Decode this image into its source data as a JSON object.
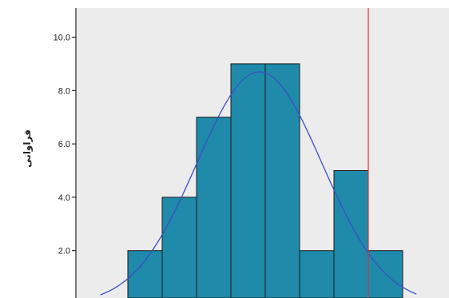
{
  "chart_data": {
    "type": "histogram",
    "title": "",
    "xlabel": "",
    "ylabel": "فراوانی",
    "ylim": [
      0,
      11
    ],
    "yticks": [
      2.0,
      4.0,
      6.0,
      8.0,
      10.0
    ],
    "ytick_labels": [
      "2.0",
      "4.0",
      "6.0",
      "8.0",
      "10.0"
    ],
    "bins": [
      1,
      2,
      3,
      4,
      5,
      6,
      7,
      8,
      9
    ],
    "values": [
      2,
      4,
      7,
      9,
      9,
      2,
      5,
      2
    ],
    "normal_curve": {
      "mean": 4.83,
      "sd": 1.82,
      "peak": 8.7
    },
    "reference_line": {
      "x": 8.0
    },
    "grid": false,
    "colors": {
      "plot_background": "#ececec",
      "bar_fill": "#1f8aa9",
      "bar_stroke": "#1b1b1b",
      "curve": "#3b4fc4",
      "reference_line": "#d9362c",
      "axis": "#000000"
    }
  }
}
